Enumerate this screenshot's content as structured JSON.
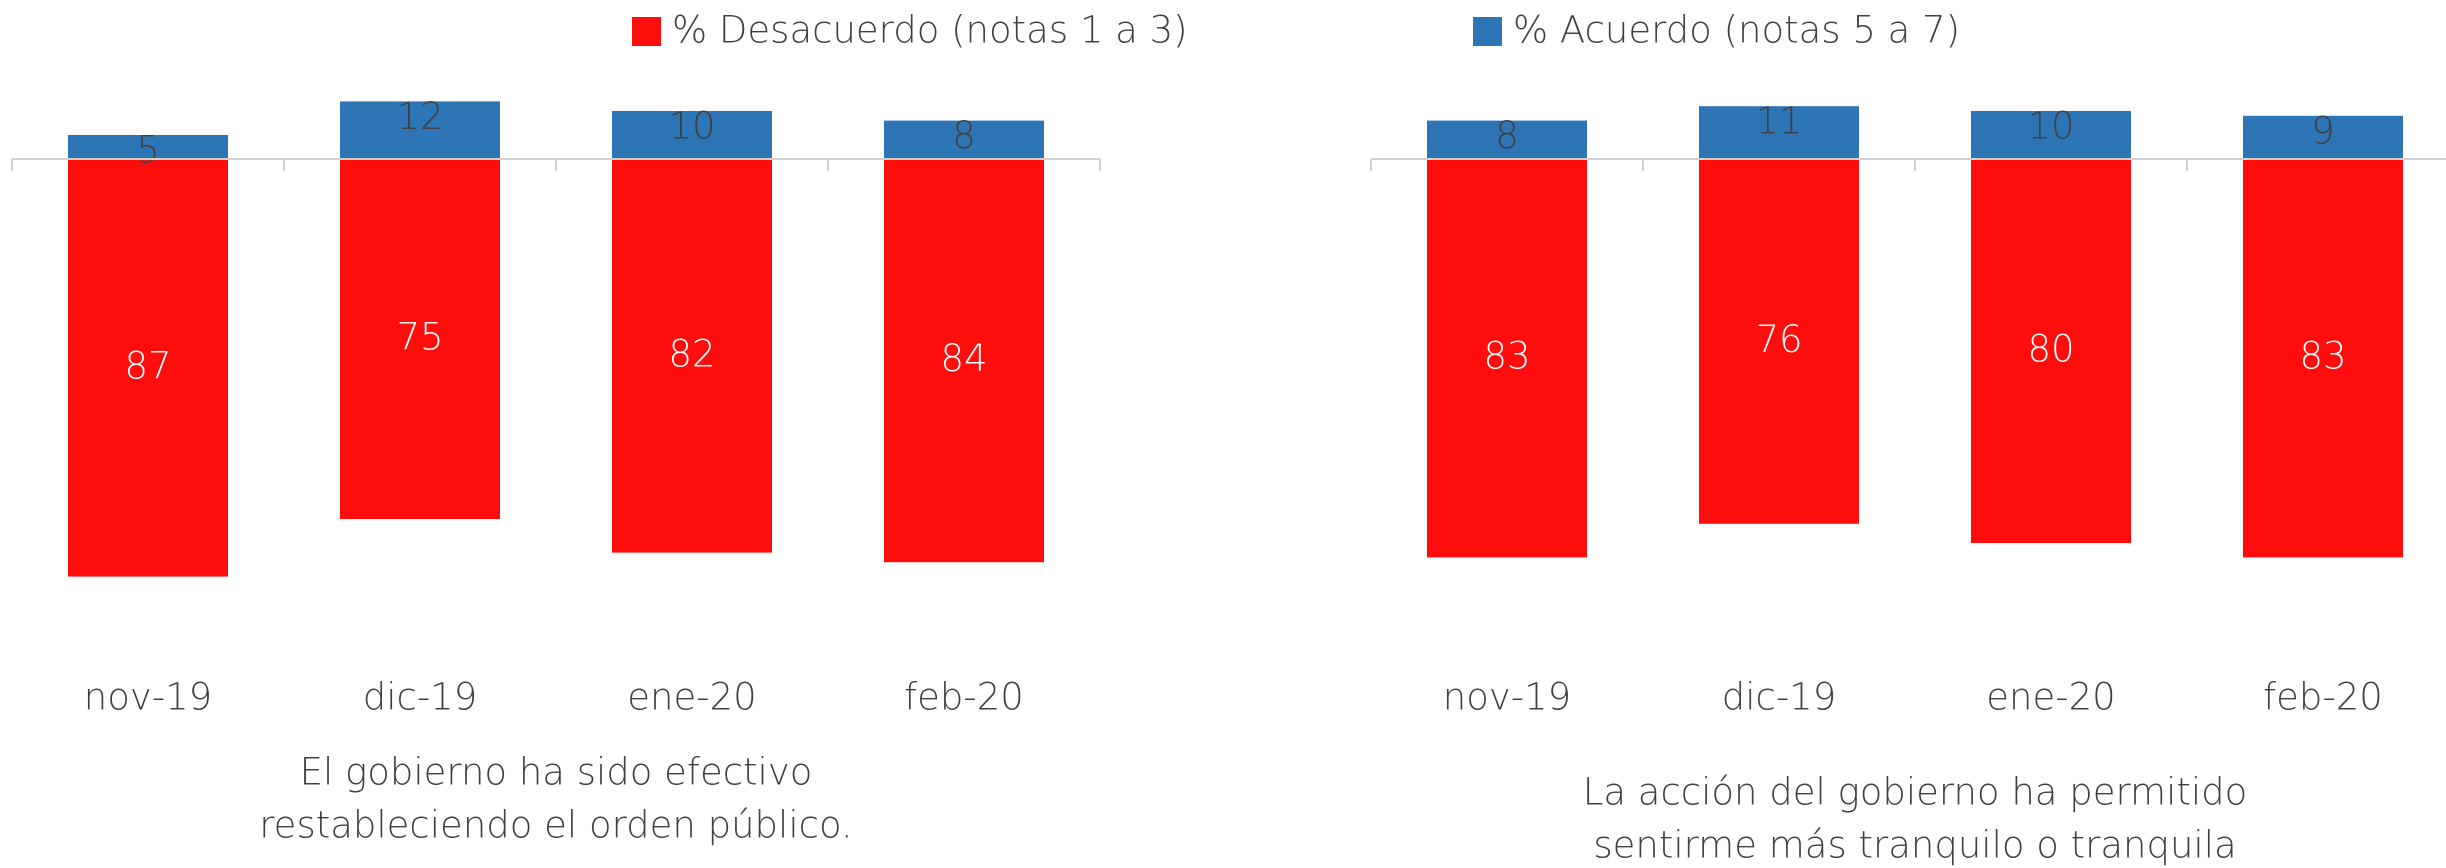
{
  "chart_data": [
    {
      "type": "bar",
      "title": [
        "El gobierno ha sido efectivo",
        "restableciendo el orden público."
      ],
      "categories": [
        "nov-19",
        "dic-19",
        "ene-20",
        "feb-20"
      ],
      "series": [
        {
          "name": "% Desacuerdo (notas 1 a 3)",
          "color": "#ff0d0d",
          "values": [
            -87,
            -75,
            -82,
            -84
          ],
          "value_labels": [
            "87",
            "75",
            "82",
            "84"
          ]
        },
        {
          "name": "% Acuerdo (notas 5 a 7)",
          "color": "#2e75b6",
          "values": [
            5,
            12,
            10,
            8
          ]
        }
      ],
      "ylim": [
        -100,
        20
      ]
    },
    {
      "type": "bar",
      "title": [
        "La acción del gobierno ha permitido",
        "sentirme más tranquilo o tranquila"
      ],
      "categories": [
        "nov-19",
        "dic-19",
        "ene-20",
        "feb-20"
      ],
      "series": [
        {
          "name": "% Desacuerdo (notas 1 a 3)",
          "color": "#ff0d0d",
          "values": [
            -83,
            -76,
            -80,
            -83
          ],
          "value_labels": [
            "83",
            "76",
            "80",
            "83"
          ]
        },
        {
          "name": "% Acuerdo (notas 5 a 7)",
          "color": "#2e75b6",
          "values": [
            8,
            11,
            10,
            9
          ]
        }
      ],
      "ylim": [
        -100,
        20
      ]
    }
  ]
}
